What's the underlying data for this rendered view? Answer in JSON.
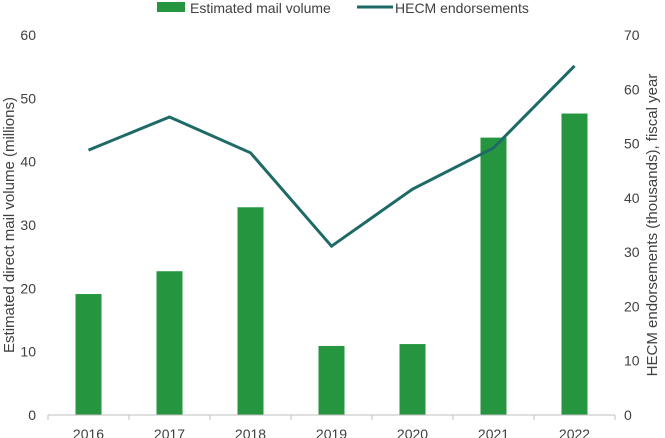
{
  "chart_data": {
    "type": "bar+line",
    "categories": [
      "2016",
      "2017",
      "2018",
      "2019",
      "2020",
      "2021",
      "2022"
    ],
    "series": [
      {
        "name": "Estimated mail volume",
        "type": "bar",
        "axis": "left",
        "color": "#25963f",
        "values": [
          19.1,
          22.7,
          32.8,
          10.9,
          11.2,
          43.8,
          47.6
        ]
      },
      {
        "name": "HECM endorsements",
        "type": "line",
        "axis": "right",
        "color": "#1e6a66",
        "values": [
          48.8,
          54.9,
          48.3,
          31.1,
          41.6,
          49.2,
          64.3
        ]
      }
    ],
    "ylabel": "Estimated direct mail volume (millions)",
    "y2label": "HECM endorsements (thousands), fiscal year",
    "ylim": [
      0,
      60
    ],
    "y2lim": [
      0,
      70
    ],
    "yticks": [
      "0",
      "10",
      "20",
      "30",
      "40",
      "50",
      "60"
    ],
    "y2ticks": [
      "0",
      "10",
      "20",
      "30",
      "40",
      "50",
      "60",
      "70"
    ],
    "grid": false,
    "legend": "top-center"
  }
}
